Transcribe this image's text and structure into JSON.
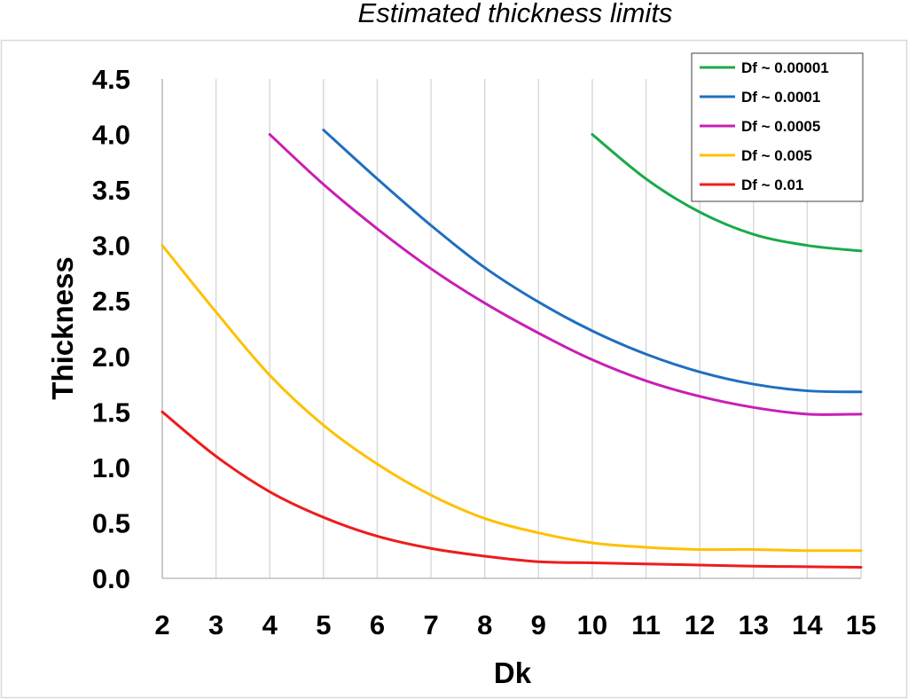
{
  "chart_data": {
    "type": "line",
    "title": "Estimated thickness limits",
    "xlabel": "Dk",
    "ylabel": "Thickness",
    "xlim": [
      2,
      15
    ],
    "ylim": [
      0,
      4.5
    ],
    "xticks": [
      "2",
      "3",
      "4",
      "5",
      "6",
      "7",
      "8",
      "9",
      "10",
      "11",
      "12",
      "13",
      "14",
      "15"
    ],
    "yticks": [
      "0.0",
      "0.5",
      "1.0",
      "1.5",
      "2.0",
      "2.5",
      "3.0",
      "3.5",
      "4.0",
      "4.5"
    ],
    "grid": "vertical",
    "legend_position": "top-right",
    "series": [
      {
        "name": "Df ~ 0.00001",
        "color": "#1aaa4b",
        "points": [
          [
            10,
            4.0
          ],
          [
            11,
            3.6
          ],
          [
            12,
            3.3
          ],
          [
            13,
            3.1
          ],
          [
            14,
            3.0
          ],
          [
            15,
            2.95
          ]
        ]
      },
      {
        "name": "Df ~ 0.0001",
        "color": "#1f6fbf",
        "points": [
          [
            5,
            4.04
          ],
          [
            6,
            3.6
          ],
          [
            7,
            3.18
          ],
          [
            8,
            2.8
          ],
          [
            9,
            2.49
          ],
          [
            10,
            2.23
          ],
          [
            11,
            2.02
          ],
          [
            12,
            1.86
          ],
          [
            13,
            1.75
          ],
          [
            14,
            1.69
          ],
          [
            15,
            1.68
          ]
        ]
      },
      {
        "name": "Df ~ 0.0005",
        "color": "#c81fb5",
        "points": [
          [
            4,
            4.0
          ],
          [
            5,
            3.55
          ],
          [
            6,
            3.15
          ],
          [
            7,
            2.79
          ],
          [
            8,
            2.48
          ],
          [
            9,
            2.21
          ],
          [
            10,
            1.97
          ],
          [
            11,
            1.78
          ],
          [
            12,
            1.64
          ],
          [
            13,
            1.54
          ],
          [
            14,
            1.48
          ],
          [
            15,
            1.48
          ]
        ]
      },
      {
        "name": "Df ~ 0.005",
        "color": "#ffc000",
        "points": [
          [
            2,
            3.0
          ],
          [
            3,
            2.4
          ],
          [
            4,
            1.83
          ],
          [
            5,
            1.38
          ],
          [
            6,
            1.03
          ],
          [
            7,
            0.75
          ],
          [
            8,
            0.54
          ],
          [
            9,
            0.41
          ],
          [
            10,
            0.32
          ],
          [
            11,
            0.28
          ],
          [
            12,
            0.26
          ],
          [
            13,
            0.26
          ],
          [
            14,
            0.25
          ],
          [
            15,
            0.25
          ]
        ]
      },
      {
        "name": "Df ~ 0.01",
        "color": "#ee1c1c",
        "points": [
          [
            2,
            1.5
          ],
          [
            3,
            1.1
          ],
          [
            4,
            0.78
          ],
          [
            5,
            0.55
          ],
          [
            6,
            0.38
          ],
          [
            7,
            0.27
          ],
          [
            8,
            0.2
          ],
          [
            9,
            0.15
          ],
          [
            10,
            0.14
          ],
          [
            11,
            0.13
          ],
          [
            12,
            0.12
          ],
          [
            13,
            0.11
          ],
          [
            14,
            0.105
          ],
          [
            15,
            0.1
          ]
        ]
      }
    ]
  }
}
